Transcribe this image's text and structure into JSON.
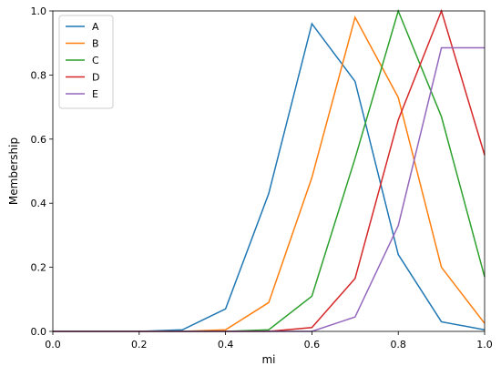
{
  "chart_data": {
    "type": "line",
    "title": "",
    "xlabel": "mi",
    "ylabel": "Membership",
    "xlim": [
      0.0,
      1.0
    ],
    "ylim": [
      0.0,
      1.0
    ],
    "x_ticks": [
      "0.0",
      "0.2",
      "0.4",
      "0.6",
      "0.8",
      "1.0"
    ],
    "y_ticks": [
      "0.0",
      "0.2",
      "0.4",
      "0.6",
      "0.8",
      "1.0"
    ],
    "grid": false,
    "legend_position": "top-left",
    "x": [
      0.0,
      0.1,
      0.2,
      0.3,
      0.4,
      0.5,
      0.6,
      0.7,
      0.8,
      0.9,
      1.0
    ],
    "series": [
      {
        "name": "A",
        "color": "#1f77b4",
        "values": [
          0.0,
          0.0,
          0.0,
          0.005,
          0.07,
          0.43,
          0.96,
          0.78,
          0.24,
          0.03,
          0.005
        ]
      },
      {
        "name": "B",
        "color": "#ff7f0e",
        "values": [
          0.0,
          0.0,
          0.0,
          0.0,
          0.005,
          0.09,
          0.48,
          0.98,
          0.73,
          0.2,
          0.025
        ]
      },
      {
        "name": "C",
        "color": "#2ca02c",
        "values": [
          0.0,
          0.0,
          0.0,
          0.0,
          0.0,
          0.005,
          0.11,
          0.54,
          1.0,
          0.67,
          0.17
        ]
      },
      {
        "name": "D",
        "color": "#d62728",
        "values": [
          0.0,
          0.0,
          0.0,
          0.0,
          0.0,
          0.0,
          0.012,
          0.165,
          0.66,
          1.0,
          0.55
        ]
      },
      {
        "name": "E",
        "color": "#9467bd",
        "values": [
          0.0,
          0.0,
          0.0,
          0.0,
          0.0,
          0.0,
          0.0,
          0.045,
          0.33,
          0.885,
          0.885
        ]
      }
    ]
  }
}
